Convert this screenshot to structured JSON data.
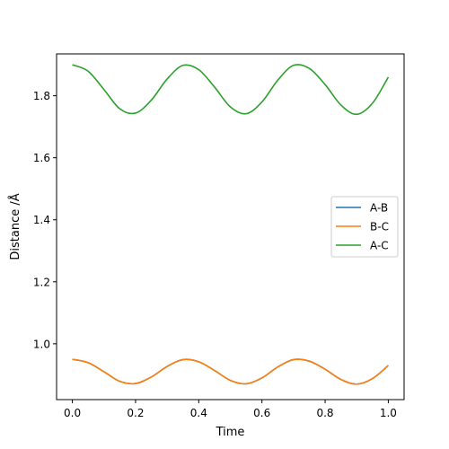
{
  "chart_data": {
    "type": "line",
    "xlabel": "Time",
    "ylabel": "Distance /Å",
    "xlim": [
      -0.05,
      1.05
    ],
    "ylim": [
      0.82,
      1.935
    ],
    "x_ticks": [
      0.0,
      0.2,
      0.4,
      0.6,
      0.8,
      1.0
    ],
    "x_tick_labels": [
      "0.0",
      "0.2",
      "0.4",
      "0.6",
      "0.8",
      "1.0"
    ],
    "y_ticks": [
      1.0,
      1.2,
      1.4,
      1.6,
      1.8
    ],
    "y_tick_labels": [
      "1.0",
      "1.2",
      "1.4",
      "1.6",
      "1.8"
    ],
    "legend_position": "center-right",
    "x": [
      0.0,
      0.05,
      0.1,
      0.15,
      0.2,
      0.25,
      0.3,
      0.35,
      0.4,
      0.45,
      0.5,
      0.55,
      0.6,
      0.65,
      0.7,
      0.75,
      0.8,
      0.85,
      0.9,
      0.95,
      1.0
    ],
    "series": [
      {
        "name": "A-B",
        "color": "#1f77b4",
        "values": [
          0.95,
          0.939,
          0.91,
          0.879,
          0.872,
          0.893,
          0.927,
          0.949,
          0.942,
          0.914,
          0.882,
          0.871,
          0.89,
          0.925,
          0.949,
          0.944,
          0.918,
          0.885,
          0.87,
          0.888,
          0.93
        ]
      },
      {
        "name": "B-C",
        "color": "#ff7f0e",
        "values": [
          0.95,
          0.939,
          0.91,
          0.879,
          0.872,
          0.893,
          0.927,
          0.949,
          0.942,
          0.914,
          0.882,
          0.871,
          0.89,
          0.925,
          0.949,
          0.944,
          0.918,
          0.885,
          0.87,
          0.888,
          0.93
        ]
      },
      {
        "name": "A-C",
        "color": "#2ca02c",
        "values": [
          1.9,
          1.879,
          1.82,
          1.758,
          1.744,
          1.786,
          1.854,
          1.898,
          1.884,
          1.828,
          1.764,
          1.742,
          1.78,
          1.85,
          1.898,
          1.888,
          1.836,
          1.77,
          1.74,
          1.776,
          1.86
        ]
      }
    ]
  }
}
